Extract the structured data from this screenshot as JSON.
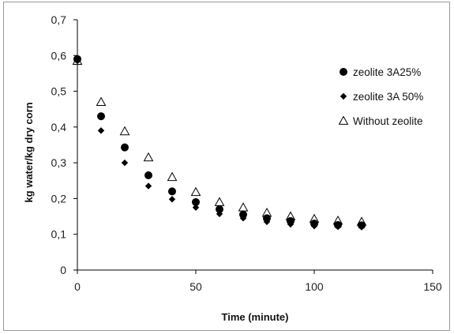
{
  "chart_data": {
    "type": "scatter",
    "title": "",
    "xlabel": "Time (minute)",
    "ylabel": "kg water/kg dry corn",
    "xlim": [
      0,
      150
    ],
    "ylim": [
      0,
      0.7
    ],
    "x_ticks": [
      "0",
      "50",
      "100",
      "150"
    ],
    "y_ticks": [
      "0",
      "0,1",
      "0,2",
      "0,3",
      "0,4",
      "0,5",
      "0,6",
      "0,7"
    ],
    "grid": false,
    "legend_position": "right",
    "series": [
      {
        "name": "zeolite 3A25%",
        "marker": "circle",
        "color": "#000000",
        "points": [
          [
            0,
            0.59
          ],
          [
            10,
            0.43
          ],
          [
            20,
            0.343
          ],
          [
            30,
            0.265
          ],
          [
            40,
            0.22
          ],
          [
            50,
            0.19
          ],
          [
            60,
            0.17
          ],
          [
            70,
            0.155
          ],
          [
            80,
            0.145
          ],
          [
            90,
            0.137
          ],
          [
            100,
            0.13
          ],
          [
            110,
            0.126
          ],
          [
            120,
            0.125
          ]
        ]
      },
      {
        "name": "zeolite 3A 50%",
        "marker": "diamond",
        "color": "#000000",
        "points": [
          [
            0,
            0.585
          ],
          [
            10,
            0.39
          ],
          [
            20,
            0.3
          ],
          [
            30,
            0.235
          ],
          [
            40,
            0.198
          ],
          [
            50,
            0.175
          ],
          [
            60,
            0.157
          ],
          [
            70,
            0.145
          ],
          [
            80,
            0.135
          ],
          [
            90,
            0.128
          ],
          [
            100,
            0.123
          ],
          [
            110,
            0.121
          ],
          [
            120,
            0.12
          ]
        ]
      },
      {
        "name": "Without zeolite",
        "marker": "triangle",
        "color": "#000000",
        "points": [
          [
            0,
            0.585
          ],
          [
            10,
            0.47
          ],
          [
            20,
            0.388
          ],
          [
            30,
            0.315
          ],
          [
            40,
            0.26
          ],
          [
            50,
            0.218
          ],
          [
            60,
            0.19
          ],
          [
            70,
            0.175
          ],
          [
            80,
            0.16
          ],
          [
            90,
            0.15
          ],
          [
            100,
            0.143
          ],
          [
            110,
            0.138
          ],
          [
            120,
            0.135
          ]
        ]
      }
    ]
  }
}
